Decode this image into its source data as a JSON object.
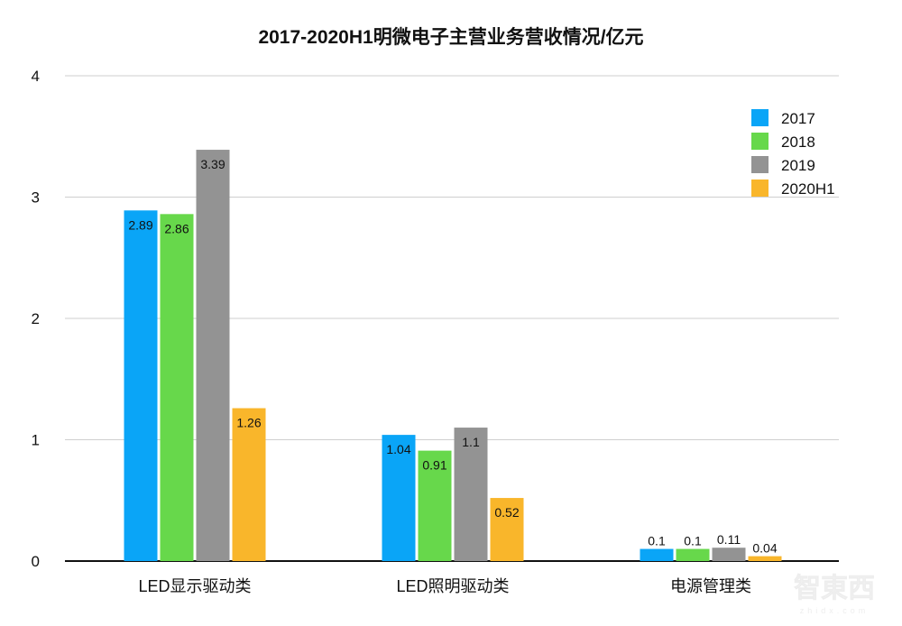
{
  "chart_data": {
    "type": "bar",
    "title": "2017-2020H1明微电子主营业务营收情况/亿元",
    "categories": [
      "LED显示驱动类",
      "LED照明驱动类",
      "电源管理类"
    ],
    "series": [
      {
        "name": "2017",
        "color": "#0aa5f7",
        "values": [
          2.89,
          1.04,
          0.1
        ]
      },
      {
        "name": "2018",
        "color": "#67d84b",
        "values": [
          2.86,
          0.91,
          0.1
        ]
      },
      {
        "name": "2019",
        "color": "#939393",
        "values": [
          3.39,
          1.1,
          0.11
        ]
      },
      {
        "name": "2020H1",
        "color": "#f9b62b",
        "values": [
          1.26,
          0.52,
          0.04
        ]
      }
    ],
    "data_labels": [
      [
        "2.89",
        "1.04",
        "0.1"
      ],
      [
        "2.86",
        "0.91",
        "0.1"
      ],
      [
        "3.39",
        "1.1",
        "0.11"
      ],
      [
        "1.26",
        "0.52",
        "0.04"
      ]
    ],
    "yticks": [
      "0",
      "1",
      "2",
      "3",
      "4"
    ],
    "ylim": [
      0,
      4
    ],
    "xlabel": "",
    "ylabel": "",
    "grid": true,
    "legend_position": "top-right"
  },
  "watermark": "智东西 zhidx.com"
}
